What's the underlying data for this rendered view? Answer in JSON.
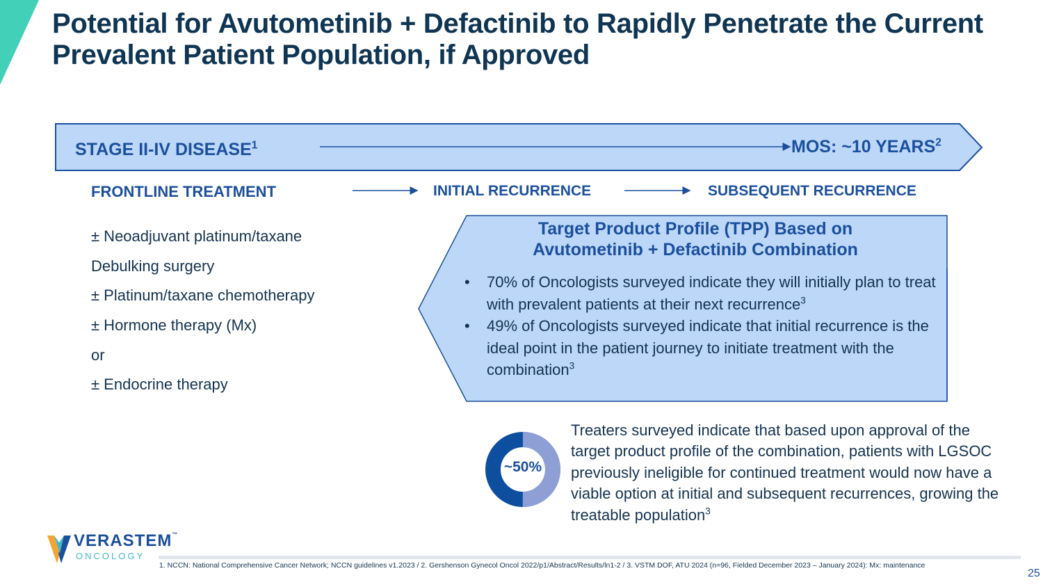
{
  "slide": {
    "title": "Potential for Avutometinib + Defactinib to Rapidly Penetrate the Current Prevalent Patient Population, if Approved",
    "page_number": "25"
  },
  "banner": {
    "stage_label": "STAGE II-IV DISEASE",
    "stage_ref": "1",
    "mos_label": "MOS: ~10 YEARS",
    "mos_ref": "2"
  },
  "phases": {
    "frontline": "FRONTLINE TREATMENT",
    "initial": "INITIAL RECURRENCE",
    "subsequent": "SUBSEQUENT RECURRENCE"
  },
  "frontline_items": [
    "± Neoadjuvant platinum/taxane",
    "Debulking surgery",
    "± Platinum/taxane chemotherapy",
    "± Hormone therapy (Mx)",
    "or",
    "± Endocrine therapy"
  ],
  "tpp": {
    "title_line1": "Target Product Profile (TPP) Based on",
    "title_line2": "Avutometinib + Defactinib Combination",
    "bullets": [
      {
        "text": "70% of Oncologists surveyed indicate they will initially plan to treat with prevalent patients at their next recurrence",
        "ref": "3"
      },
      {
        "text": "49% of Oncologists surveyed indicate that initial recurrence is the ideal point in the patient journey to initiate treatment with the combination",
        "ref": "3"
      }
    ],
    "bullet_symbol": "•"
  },
  "stat": {
    "percent_label": "~50%",
    "percent_value": 50,
    "description": "Treaters surveyed indicate that based upon approval of the target product profile of the combination, patients with LGSOC previously ineligible for continued treatment would now have a viable option at initial and subsequent recurrences, growing the treatable population",
    "ref": "3"
  },
  "logo": {
    "name": "VERASTEM",
    "tm": "™",
    "sub": "ONCOLOGY"
  },
  "footnote": "1. NCCN: National Comprehensive Cancer Network; NCCN guidelines v1.2023 / 2. Gershenson Gynecol Oncol 2022/p1/Abstract/Results/ln1-2  / 3. VSTM DOF, ATU 2024 (n=96, Fielded December 2023 – January 2024): Mx: maintenance",
  "colors": {
    "title": "#0f3553",
    "accent_blue": "#1b4f9c",
    "banner_fill": "#bcd7f8",
    "teal": "#43d0b8",
    "donut_dark": "#0d4e9f",
    "donut_light": "#8e9fd6"
  }
}
